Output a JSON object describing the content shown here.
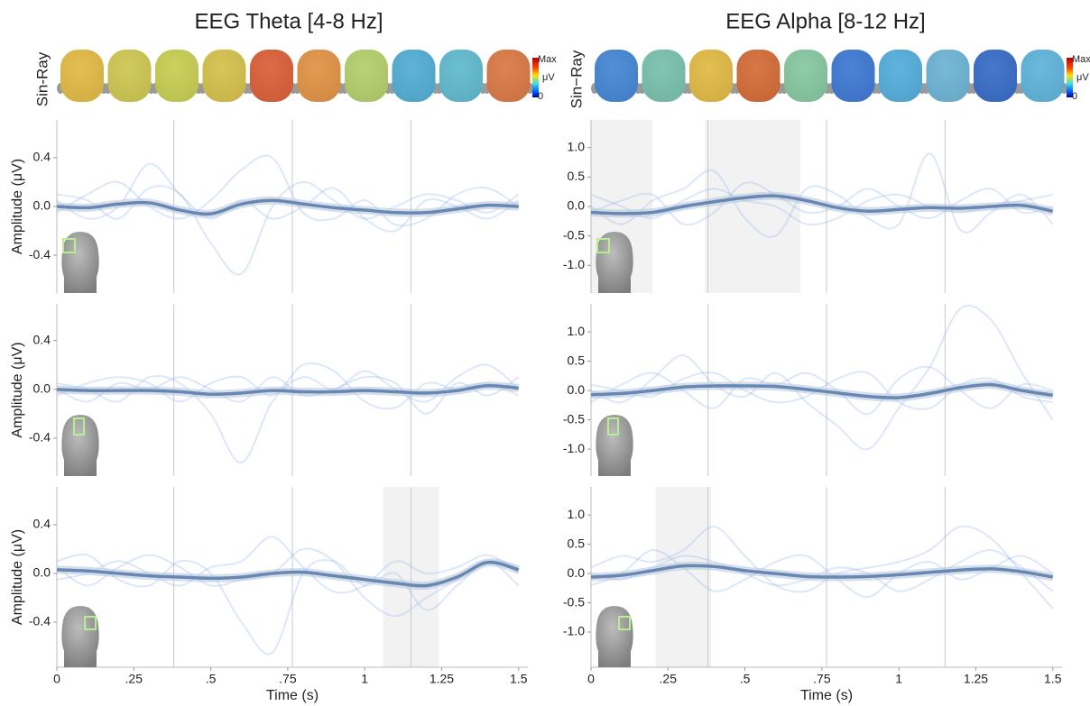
{
  "panels": [
    {
      "title": "EEG Theta [4-8 Hz]",
      "topomap_label": "Sin-Ray",
      "colorbar_labels": [
        "Max",
        "μV",
        "0"
      ],
      "topomap_colors": [
        "#f0c030",
        "#d8d040",
        "#d0d840",
        "#e0c838",
        "#e85020",
        "#f09030",
        "#b8d860",
        "#40b0e0",
        "#50c0d8",
        "#e87030"
      ]
    },
    {
      "title": "EEG Alpha [8-12 Hz]",
      "topomap_label": "Sin−Ray",
      "colorbar_labels": [
        "Max",
        "μV",
        "0"
      ],
      "topomap_colors": [
        "#3080e0",
        "#70c8b0",
        "#f0c030",
        "#e06020",
        "#80d0a0",
        "#2870e0",
        "#40b0e8",
        "#60b8e0",
        "#2060d0",
        "#50b8e8"
      ]
    }
  ],
  "chart_data": [
    {
      "type": "line",
      "y_label": "Amplitude (μV)",
      "xlim": [
        0,
        1.53
      ],
      "ylim": [
        -0.71,
        0.71
      ],
      "yticks": [
        0.4,
        {
          "value": 0,
          "label": "0.0"
        },
        -0.4
      ],
      "vlines": [
        0.38,
        0.765,
        1.15
      ],
      "shaded": [],
      "x": [
        0,
        0.1,
        0.2,
        0.3,
        0.4,
        0.5,
        0.6,
        0.7,
        0.8,
        0.9,
        1.0,
        1.1,
        1.2,
        1.3,
        1.4,
        1.5
      ],
      "series": [
        {
          "color": "#8fb0f0",
          "values": [
            0.1,
            0.05,
            -0.1,
            0.15,
            0.1,
            -0.3,
            -0.55,
            0.0,
            0.2,
            0.05,
            -0.1,
            0.0,
            0.1,
            0.05,
            -0.05,
            0.1
          ]
        },
        {
          "color": "#8fb0f0",
          "values": [
            -0.05,
            0.1,
            0.2,
            0.0,
            -0.1,
            0.05,
            0.3,
            0.4,
            -0.05,
            -0.1,
            0.05,
            -0.15,
            -0.1,
            0.1,
            0.15,
            0.0
          ]
        },
        {
          "color": "#8fb0f0",
          "values": [
            0.05,
            -0.1,
            0.0,
            0.35,
            0.1,
            -0.1,
            0.05,
            -0.1,
            0.0,
            0.15,
            -0.1,
            -0.2,
            0.05,
            0.0,
            -0.1,
            0.05
          ]
        },
        {
          "color": "#6788b2",
          "values": [
            0.0,
            -0.01,
            0.02,
            0.03,
            -0.03,
            -0.06,
            0.02,
            0.05,
            0.02,
            -0.01,
            -0.03,
            -0.05,
            -0.05,
            -0.02,
            0.01,
            0.0
          ]
        }
      ]
    },
    {
      "type": "line",
      "y_label": "Amplitude (μV)",
      "xlim": [
        0,
        1.53
      ],
      "ylim": [
        -0.71,
        0.7
      ],
      "yticks": [
        0.4,
        {
          "value": 0,
          "label": "0.0"
        },
        -0.4
      ],
      "vlines": [
        0.38,
        0.765,
        1.15
      ],
      "shaded": [],
      "x": [
        0,
        0.1,
        0.2,
        0.3,
        0.4,
        0.5,
        0.6,
        0.7,
        0.8,
        0.9,
        1.0,
        1.1,
        1.2,
        1.3,
        1.4,
        1.5
      ],
      "series": [
        {
          "color": "#8fb0f0",
          "values": [
            0.05,
            0.0,
            -0.1,
            0.1,
            0.05,
            -0.2,
            -0.6,
            -0.1,
            0.1,
            0.0,
            0.15,
            0.0,
            -0.1,
            0.1,
            0.2,
            0.0
          ]
        },
        {
          "color": "#8fb0f0",
          "values": [
            -0.05,
            0.05,
            0.1,
            0.05,
            -0.1,
            0.05,
            0.1,
            -0.05,
            0.2,
            0.15,
            -0.1,
            -0.15,
            0.05,
            0.0,
            0.05,
            -0.05
          ]
        },
        {
          "color": "#8fb0f0",
          "values": [
            0.0,
            -0.1,
            0.05,
            0.0,
            0.1,
            0.0,
            -0.1,
            0.1,
            -0.05,
            0.0,
            0.1,
            0.05,
            -0.2,
            0.05,
            -0.05,
            0.1
          ]
        },
        {
          "color": "#6788b2",
          "values": [
            0.0,
            -0.01,
            -0.01,
            -0.01,
            -0.02,
            -0.04,
            -0.03,
            -0.01,
            -0.02,
            -0.02,
            -0.01,
            -0.02,
            -0.03,
            -0.01,
            0.03,
            0.01
          ]
        }
      ]
    },
    {
      "type": "line",
      "y_label": "Amplitude (μV)",
      "x_label": "Time (s)",
      "xlim": [
        0,
        1.53
      ],
      "ylim": [
        -0.77,
        0.71
      ],
      "yticks": [
        0.4,
        {
          "value": 0,
          "label": "0.0"
        },
        -0.4
      ],
      "xticks": [
        0,
        {
          "value": 0.25,
          "label": ".25"
        },
        {
          "value": 0.5,
          "label": ".5"
        },
        {
          "value": 0.75,
          "label": ".75"
        },
        1,
        1.25,
        1.5
      ],
      "vlines": [
        0.38,
        0.765,
        1.15
      ],
      "shaded": [
        [
          1.06,
          1.24
        ]
      ],
      "x": [
        0,
        0.1,
        0.2,
        0.3,
        0.4,
        0.5,
        0.6,
        0.7,
        0.8,
        0.9,
        1.0,
        1.1,
        1.2,
        1.3,
        1.4,
        1.5
      ],
      "series": [
        {
          "color": "#8fb0f0",
          "values": [
            0.1,
            0.15,
            -0.05,
            -0.1,
            0.1,
            0.0,
            -0.4,
            -0.65,
            0.0,
            0.1,
            -0.1,
            0.0,
            -0.3,
            -0.1,
            0.1,
            0.05
          ]
        },
        {
          "color": "#8fb0f0",
          "values": [
            -0.05,
            0.0,
            0.1,
            0.0,
            -0.1,
            0.05,
            0.1,
            0.3,
            0.05,
            -0.15,
            -0.1,
            0.1,
            0.0,
            0.05,
            0.15,
            0.0
          ]
        },
        {
          "color": "#8fb0f0",
          "values": [
            0.05,
            -0.1,
            0.05,
            0.15,
            0.05,
            -0.1,
            -0.05,
            0.0,
            0.2,
            0.1,
            -0.2,
            -0.35,
            -0.2,
            -0.05,
            0.1,
            -0.1
          ]
        },
        {
          "color": "#6788b2",
          "values": [
            0.03,
            0.02,
            0.0,
            -0.02,
            -0.03,
            -0.04,
            -0.03,
            0.0,
            0.01,
            -0.02,
            -0.05,
            -0.08,
            -0.1,
            -0.03,
            0.09,
            0.03
          ]
        }
      ]
    },
    {
      "type": "line",
      "xlim": [
        0,
        1.53
      ],
      "ylim": [
        -1.47,
        1.47
      ],
      "yticks": [
        {
          "value": 1,
          "label": "1.0"
        },
        0.5,
        {
          "value": 0,
          "label": "0.0"
        },
        -0.5,
        {
          "value": -1,
          "label": "-1.0"
        }
      ],
      "vlines": [
        0.38,
        0.765,
        1.15
      ],
      "shaded": [
        [
          0,
          0.2
        ],
        [
          0.37,
          0.68
        ]
      ],
      "x": [
        0,
        0.1,
        0.2,
        0.3,
        0.4,
        0.5,
        0.6,
        0.7,
        0.8,
        0.9,
        1.0,
        1.1,
        1.2,
        1.3,
        1.4,
        1.5
      ],
      "series": [
        {
          "color": "#8fb0f0",
          "values": [
            -0.1,
            0.1,
            0.2,
            -0.3,
            -0.1,
            0.4,
            0.2,
            -0.1,
            0.0,
            0.3,
            0.0,
            -0.2,
            0.1,
            0.3,
            -0.1,
            0.0
          ]
        },
        {
          "color": "#8fb0f0",
          "values": [
            0.0,
            -0.3,
            0.1,
            0.3,
            0.6,
            -0.2,
            -0.5,
            0.3,
            0.2,
            -0.2,
            -0.3,
            0.9,
            -0.4,
            -0.1,
            0.2,
            -0.3
          ]
        },
        {
          "color": "#8fb0f0",
          "values": [
            0.2,
            0.0,
            -0.2,
            0.1,
            0.3,
            0.1,
            0.0,
            -0.3,
            -0.2,
            0.1,
            0.2,
            0.0,
            -0.1,
            0.0,
            0.1,
            0.2
          ]
        },
        {
          "color": "#6788b2",
          "values": [
            -0.1,
            -0.12,
            -0.1,
            0.0,
            0.08,
            0.15,
            0.18,
            0.1,
            -0.02,
            -0.08,
            -0.05,
            -0.02,
            -0.03,
            0.0,
            0.02,
            -0.08
          ]
        }
      ]
    },
    {
      "type": "line",
      "xlim": [
        0,
        1.53
      ],
      "ylim": [
        -1.46,
        1.48
      ],
      "yticks": [
        {
          "value": 1,
          "label": "1.0"
        },
        0.5,
        {
          "value": 0,
          "label": "0.0"
        },
        -0.5,
        {
          "value": -1,
          "label": "-1.0"
        }
      ],
      "vlines": [
        0.38,
        0.765,
        1.15
      ],
      "shaded": [],
      "x": [
        0,
        0.1,
        0.2,
        0.3,
        0.4,
        0.5,
        0.6,
        0.7,
        0.8,
        0.9,
        1.0,
        1.1,
        1.2,
        1.3,
        1.4,
        1.5
      ],
      "series": [
        {
          "color": "#8fb0f0",
          "values": [
            0.0,
            -0.2,
            0.2,
            0.6,
            0.1,
            -0.1,
            0.3,
            -0.2,
            -0.6,
            -1.0,
            -0.3,
            0.4,
            1.4,
            1.2,
            0.3,
            -0.5
          ]
        },
        {
          "color": "#8fb0f0",
          "values": [
            -0.2,
            0.1,
            0.3,
            0.0,
            -0.3,
            0.2,
            0.1,
            0.3,
            0.0,
            -0.4,
            0.2,
            0.4,
            0.0,
            -0.3,
            0.1,
            0.0
          ]
        },
        {
          "color": "#8fb0f0",
          "values": [
            0.1,
            0.0,
            -0.1,
            0.2,
            0.3,
            0.0,
            -0.2,
            -0.1,
            0.2,
            0.3,
            -0.2,
            -0.3,
            0.1,
            0.2,
            -0.1,
            -0.2
          ]
        },
        {
          "color": "#6788b2",
          "values": [
            -0.07,
            -0.05,
            0.0,
            0.06,
            0.08,
            0.08,
            0.07,
            0.02,
            -0.04,
            -0.1,
            -0.12,
            -0.05,
            0.05,
            0.1,
            0.0,
            -0.08
          ]
        }
      ]
    },
    {
      "type": "line",
      "x_label": "Time (s)",
      "xlim": [
        0,
        1.53
      ],
      "ylim": [
        -1.6,
        1.48
      ],
      "yticks": [
        {
          "value": 1,
          "label": "1.0"
        },
        0.5,
        {
          "value": 0,
          "label": "0.0"
        },
        -0.5,
        {
          "value": -1,
          "label": "-1.0"
        }
      ],
      "xticks": [
        0,
        {
          "value": 0.25,
          "label": ".25"
        },
        {
          "value": 0.5,
          "label": ".5"
        },
        {
          "value": 0.75,
          "label": ".75"
        },
        1,
        1.25,
        1.5
      ],
      "vlines": [
        0.38,
        0.765,
        1.15
      ],
      "shaded": [
        [
          0.21,
          0.39
        ]
      ],
      "x": [
        0,
        0.1,
        0.2,
        0.3,
        0.4,
        0.5,
        0.6,
        0.7,
        0.8,
        0.9,
        1.0,
        1.1,
        1.2,
        1.3,
        1.4,
        1.5
      ],
      "series": [
        {
          "color": "#8fb0f0",
          "values": [
            0.1,
            0.3,
            0.2,
            0.4,
            0.8,
            0.3,
            -0.2,
            -0.3,
            0.0,
            0.1,
            0.2,
            0.4,
            0.8,
            0.6,
            0.0,
            -0.6
          ]
        },
        {
          "color": "#8fb0f0",
          "values": [
            -0.2,
            0.0,
            0.4,
            0.1,
            -0.3,
            -0.1,
            0.2,
            0.3,
            -0.1,
            -0.4,
            0.0,
            0.2,
            -0.1,
            0.1,
            0.3,
            0.0
          ]
        },
        {
          "color": "#8fb0f0",
          "values": [
            0.0,
            -0.1,
            0.1,
            0.3,
            0.2,
            0.0,
            -0.2,
            -0.1,
            0.1,
            0.0,
            -0.3,
            -0.1,
            0.2,
            0.4,
            0.1,
            -0.3
          ]
        },
        {
          "color": "#6788b2",
          "values": [
            -0.06,
            -0.03,
            0.05,
            0.13,
            0.12,
            0.05,
            0.0,
            -0.05,
            -0.06,
            -0.05,
            -0.02,
            0.02,
            0.06,
            0.08,
            0.03,
            -0.06
          ]
        }
      ]
    }
  ]
}
